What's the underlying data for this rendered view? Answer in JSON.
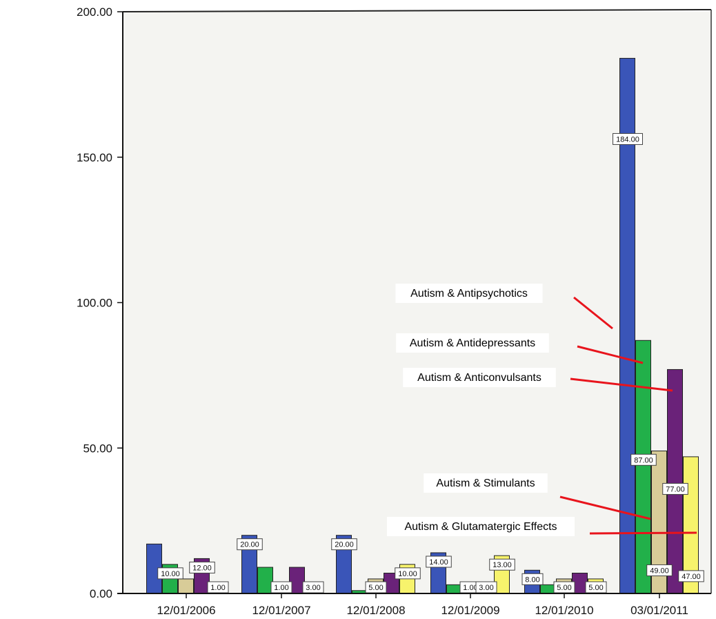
{
  "chart_data": {
    "type": "bar",
    "title": "",
    "xlabel": "",
    "ylabel": "",
    "categories": [
      "12/01/2006",
      "12/01/2007",
      "12/01/2008",
      "12/01/2009",
      "12/01/2010",
      "03/01/2011"
    ],
    "y_ticks": [
      "0.00",
      "50.00",
      "100.00",
      "150.00",
      "200.00"
    ],
    "ylim": [
      0,
      200
    ],
    "grid": false,
    "series": [
      {
        "name": "Autism & Antipsychotics",
        "color": "#3a55b8",
        "values": [
          17,
          20,
          20,
          14,
          8,
          184
        ]
      },
      {
        "name": "Autism & Antidepressants",
        "color": "#22b04a",
        "values": [
          10,
          9,
          1,
          3,
          3,
          87
        ]
      },
      {
        "name": "Autism & Stimulants",
        "color": "#d8cc98",
        "values": [
          5,
          1,
          5,
          1,
          5,
          49
        ]
      },
      {
        "name": "Autism & Anticonvulsants",
        "color": "#6a2279",
        "values": [
          12,
          9,
          7,
          3,
          7,
          77
        ]
      },
      {
        "name": "Autism & Glutamatergic Effects",
        "color": "#f7f36c",
        "values": [
          1,
          3,
          10,
          13,
          5,
          47
        ]
      }
    ],
    "data_labels": [
      {
        "category": 0,
        "series": 1,
        "text": "10.00"
      },
      {
        "category": 0,
        "series": 3,
        "text": "12.00"
      },
      {
        "category": 0,
        "series": 4,
        "text": "1.00"
      },
      {
        "category": 1,
        "series": 0,
        "text": "20.00"
      },
      {
        "category": 1,
        "series": 2,
        "text": "1.00"
      },
      {
        "category": 1,
        "series": 4,
        "text": "3.00"
      },
      {
        "category": 2,
        "series": 0,
        "text": "20.00"
      },
      {
        "category": 2,
        "series": 2,
        "text": "5.00"
      },
      {
        "category": 2,
        "series": 4,
        "text": "10.00"
      },
      {
        "category": 3,
        "series": 0,
        "text": "14.00"
      },
      {
        "category": 3,
        "series": 2,
        "text": "1.00"
      },
      {
        "category": 3,
        "series": 3,
        "text": "3.00"
      },
      {
        "category": 3,
        "series": 4,
        "text": "13.00"
      },
      {
        "category": 4,
        "series": 0,
        "text": "8.00"
      },
      {
        "category": 4,
        "series": 2,
        "text": "5.00"
      },
      {
        "category": 4,
        "series": 4,
        "text": "5.00"
      },
      {
        "category": 5,
        "series": 0,
        "text": "184.00"
      },
      {
        "category": 5,
        "series": 1,
        "text": "87.00"
      },
      {
        "category": 5,
        "series": 3,
        "text": "77.00"
      },
      {
        "category": 5,
        "series": 2,
        "text": "49.00"
      },
      {
        "category": 5,
        "series": 4,
        "text": "47.00"
      }
    ],
    "annotations": [
      {
        "text": "Autism & Antipsychotics",
        "series": 0,
        "category": 5
      },
      {
        "text": "Autism & Antidepressants",
        "series": 1,
        "category": 5
      },
      {
        "text": "Autism & Anticonvulsants",
        "series": 3,
        "category": 5
      },
      {
        "text": "Autism & Stimulants",
        "series": 2,
        "category": 5
      },
      {
        "text": "Autism & Glutamatergic Effects",
        "series": 4,
        "category": 5
      }
    ]
  }
}
